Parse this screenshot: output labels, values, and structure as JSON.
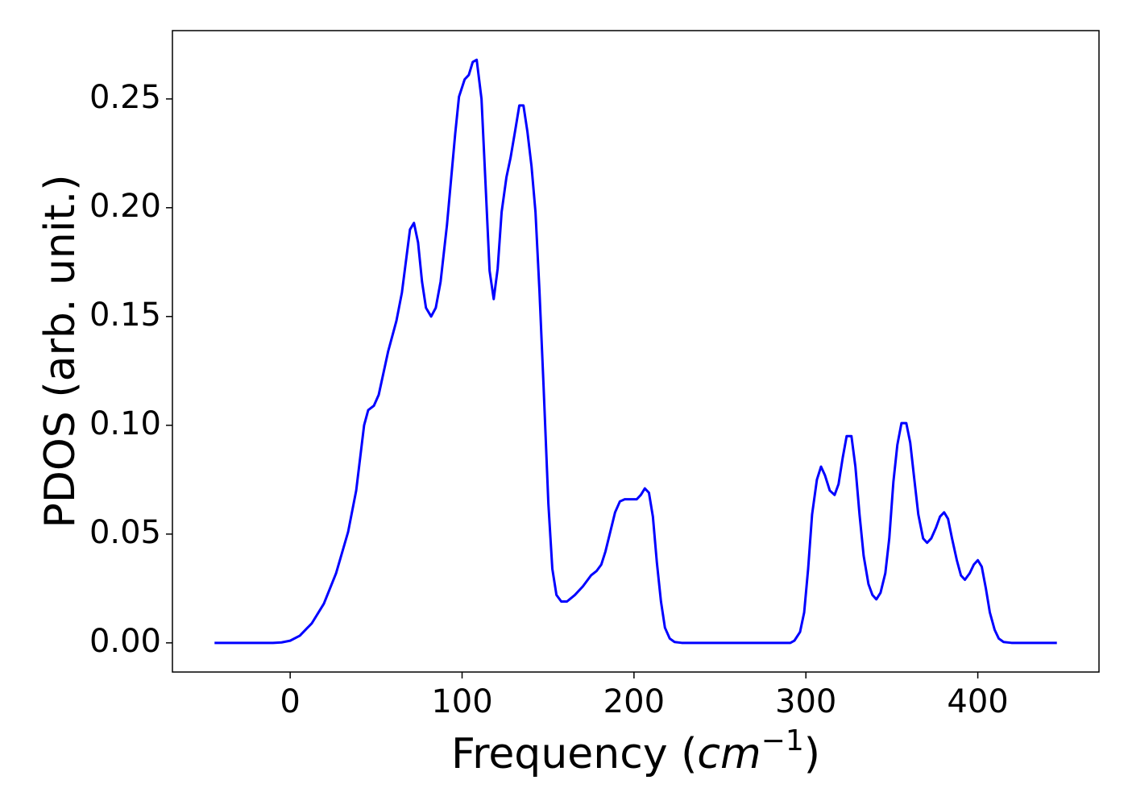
{
  "chart_data": {
    "type": "line",
    "ylabel": "PDOS (arb. unit.)",
    "xlabel_parts": [
      "Frequency (",
      "cm",
      "−1",
      ")"
    ],
    "xlim": [
      -68.5,
      470.5
    ],
    "ylim": [
      -0.0134,
      0.2814
    ],
    "xticks": [
      0,
      100,
      200,
      300,
      400
    ],
    "yticks": [
      {
        "value": 0,
        "label": "0.00"
      },
      {
        "value": 0.05,
        "label": "0.05"
      },
      {
        "value": 0.1,
        "label": "0.10"
      },
      {
        "value": 0.15,
        "label": "0.15"
      },
      {
        "value": 0.2,
        "label": "0.20"
      },
      {
        "value": 0.25,
        "label": "0.25"
      }
    ],
    "grid": false,
    "series": [
      {
        "color": "#0000ff",
        "x": [
          -44,
          -30,
          -20,
          -10,
          -5,
          0,
          5.6,
          12.6,
          19.6,
          26.7,
          33.7,
          38.4,
          43,
          45.4,
          48.7,
          51.5,
          57,
          61.8,
          65,
          69.7,
          72,
          74.4,
          76.7,
          79,
          82,
          84.7,
          87.5,
          91.2,
          96,
          98.2,
          101.5,
          103.9,
          106.2,
          108.5,
          111.3,
          113.7,
          116,
          118.4,
          120.7,
          123,
          125.8,
          128.2,
          131,
          133.3,
          135.7,
          138,
          140.4,
          142.7,
          145,
          147.4,
          150.2,
          152.5,
          154.9,
          157.7,
          161,
          165.6,
          170.3,
          175,
          178.2,
          181,
          183.4,
          186.2,
          189,
          191.8,
          194.6,
          198.4,
          201.6,
          204,
          206.3,
          208.7,
          211,
          213.3,
          215.7,
          218,
          220.8,
          223.6,
          227.8,
          240,
          260,
          280,
          291,
          293.3,
          296.6,
          299,
          301.3,
          303.6,
          306.4,
          308.8,
          311.1,
          313.9,
          316.7,
          319,
          321.4,
          323.7,
          326.5,
          328.8,
          331.2,
          333.6,
          336.4,
          338.7,
          341,
          343.4,
          346.2,
          348.5,
          350.9,
          353.2,
          355.6,
          358.4,
          360.7,
          363.1,
          365.4,
          368.2,
          370.5,
          372.9,
          375.7,
          378,
          380.4,
          382.7,
          385,
          387.8,
          390.2,
          392.5,
          395.3,
          397.7,
          400,
          402.3,
          404.7,
          407,
          409.8,
          412.2,
          415,
          419.6,
          430,
          446
        ],
        "values": [
          0,
          0,
          0,
          0,
          0.0002,
          0.001,
          0.0033,
          0.009,
          0.018,
          0.032,
          0.051,
          0.07,
          0.1,
          0.107,
          0.109,
          0.114,
          0.134,
          0.148,
          0.161,
          0.19,
          0.193,
          0.184,
          0.166,
          0.154,
          0.15,
          0.154,
          0.166,
          0.192,
          0.234,
          0.251,
          0.259,
          0.261,
          0.267,
          0.268,
          0.25,
          0.21,
          0.171,
          0.158,
          0.172,
          0.198,
          0.214,
          0.223,
          0.236,
          0.247,
          0.247,
          0.235,
          0.219,
          0.198,
          0.162,
          0.118,
          0.064,
          0.034,
          0.022,
          0.019,
          0.019,
          0.022,
          0.026,
          0.031,
          0.033,
          0.036,
          0.042,
          0.051,
          0.06,
          0.065,
          0.066,
          0.066,
          0.066,
          0.068,
          0.071,
          0.069,
          0.058,
          0.037,
          0.019,
          0.007,
          0.002,
          0.0004,
          0,
          0,
          0,
          0,
          0,
          0.001,
          0.005,
          0.014,
          0.034,
          0.059,
          0.075,
          0.081,
          0.077,
          0.07,
          0.068,
          0.073,
          0.085,
          0.095,
          0.095,
          0.081,
          0.059,
          0.04,
          0.027,
          0.022,
          0.02,
          0.023,
          0.032,
          0.048,
          0.074,
          0.091,
          0.101,
          0.101,
          0.092,
          0.075,
          0.059,
          0.048,
          0.046,
          0.048,
          0.053,
          0.058,
          0.06,
          0.057,
          0.048,
          0.038,
          0.031,
          0.029,
          0.032,
          0.036,
          0.038,
          0.035,
          0.025,
          0.014,
          0.006,
          0.002,
          0.0004,
          0,
          0,
          0
        ]
      }
    ]
  }
}
